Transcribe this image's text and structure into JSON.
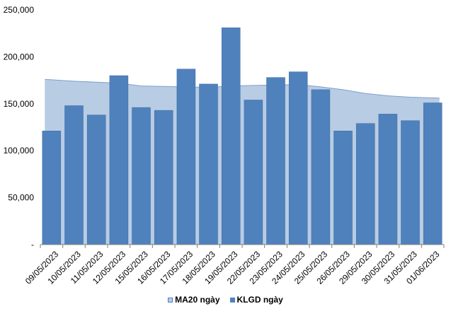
{
  "chart_data": {
    "type": "bar",
    "categories": [
      "09/05/2023",
      "10/05/2023",
      "11/05/2023",
      "12/05/2023",
      "15/05/2023",
      "16/05/2023",
      "17/05/2023",
      "18/05/2023",
      "19/05/2023",
      "22/05/2023",
      "23/05/2023",
      "24/05/2023",
      "25/05/2023",
      "26/05/2023",
      "29/05/2023",
      "30/05/2023",
      "31/05/2023",
      "01/06/2023"
    ],
    "series": [
      {
        "name": "MA20 ngày",
        "render": "area",
        "color": "#b8cce4",
        "stroke": "#7f9fcb",
        "values": [
          176000,
          174000,
          173000,
          172000,
          169000,
          168500,
          168000,
          167500,
          169000,
          169500,
          170000,
          170500,
          168000,
          165000,
          161000,
          158500,
          157000,
          156000
        ]
      },
      {
        "name": "KLGD ngày",
        "render": "bar",
        "color": "#4f81bd",
        "stroke": "#3b6aa0",
        "values": [
          121000,
          148000,
          138000,
          180000,
          146000,
          143000,
          187000,
          171000,
          231000,
          154000,
          178000,
          184000,
          165000,
          121000,
          129000,
          139000,
          132000,
          151000
        ]
      }
    ],
    "y_ticks": [
      "-",
      "50,000",
      "100,000",
      "150,000",
      "200,000",
      "250,000"
    ],
    "y_tick_values": [
      0,
      50000,
      100000,
      150000,
      200000,
      250000
    ],
    "ylim": [
      0,
      250000
    ],
    "xlabel": "",
    "ylabel": "",
    "title": "",
    "grid": false,
    "legend_position": "bottom"
  }
}
